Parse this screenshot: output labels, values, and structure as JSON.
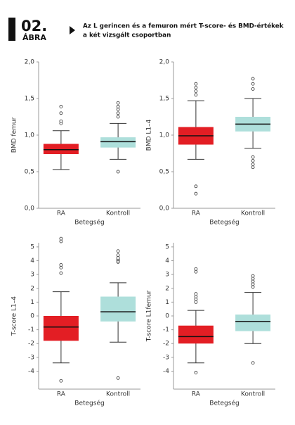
{
  "header": {
    "number": "02.",
    "label": "ÁBRA",
    "title": [
      "Az L gerincen és a femuron mért T-score- és BMD-értékek",
      "a két vizsgált csoportban"
    ]
  },
  "chart_data": [
    {
      "type": "box",
      "ylabel": "BMD femur",
      "xlabel": "Betegség",
      "categories": [
        "RA",
        "Kontroll"
      ],
      "colors": [
        "#e31e24",
        "#aedfdb"
      ],
      "ylim": [
        0,
        2
      ],
      "yticks": [
        {
          "value": 0,
          "label": "0,0"
        },
        {
          "value": 0.5,
          "label": "0,5"
        },
        {
          "value": 1,
          "label": "1,0"
        },
        {
          "value": 1.5,
          "label": "1,5"
        },
        {
          "value": 2,
          "label": "2,0"
        }
      ],
      "boxes": [
        {
          "whisker_low": 0.53,
          "q1": 0.74,
          "median": 0.8,
          "q3": 0.88,
          "whisker_high": 1.06,
          "outliers": [
            1.16,
            1.19,
            1.3,
            1.39
          ]
        },
        {
          "whisker_low": 0.67,
          "q1": 0.83,
          "median": 0.91,
          "q3": 0.97,
          "whisker_high": 1.16,
          "outliers": [
            0.5,
            1.25,
            1.3,
            1.35,
            1.39,
            1.44
          ]
        }
      ]
    },
    {
      "type": "box",
      "ylabel": "BMD L1–4",
      "xlabel": "Betegség",
      "categories": [
        "RA",
        "Kontroll"
      ],
      "colors": [
        "#e31e24",
        "#aedfdb"
      ],
      "ylim": [
        0,
        2
      ],
      "yticks": [
        {
          "value": 0,
          "label": "0,0"
        },
        {
          "value": 0.5,
          "label": "0,5"
        },
        {
          "value": 1,
          "label": "1,0"
        },
        {
          "value": 1.5,
          "label": "1,5"
        },
        {
          "value": 2,
          "label": "2,0"
        }
      ],
      "boxes": [
        {
          "whisker_low": 0.67,
          "q1": 0.87,
          "median": 0.99,
          "q3": 1.11,
          "whisker_high": 1.47,
          "outliers": [
            0.2,
            0.3,
            1.55,
            1.6,
            1.65,
            1.7
          ]
        },
        {
          "whisker_low": 0.82,
          "q1": 1.05,
          "median": 1.15,
          "q3": 1.25,
          "whisker_high": 1.5,
          "outliers": [
            0.56,
            0.6,
            0.65,
            0.7,
            1.63,
            1.7,
            1.77
          ]
        }
      ]
    },
    {
      "type": "box",
      "ylabel": "T-score L1–4",
      "xlabel": "Betegség",
      "categories": [
        "RA",
        "Kontroll"
      ],
      "colors": [
        "#e31e24",
        "#aedfdb"
      ],
      "ylim": [
        -5.3,
        5.3
      ],
      "yticks": [
        -4,
        -3,
        -2,
        -1,
        0,
        1,
        2,
        3,
        4,
        5
      ],
      "boxes": [
        {
          "whisker_low": -3.4,
          "q1": -1.8,
          "median": -0.8,
          "q3": 0,
          "whisker_high": 1.75,
          "outliers": [
            -4.7,
            3.1,
            3.5,
            3.7,
            5.4,
            5.6
          ]
        },
        {
          "whisker_low": -1.9,
          "q1": -0.4,
          "median": 0.3,
          "q3": 1.4,
          "whisker_high": 2.4,
          "outliers": [
            -4.5,
            3.9,
            4.0,
            4.1,
            4.2,
            4.4,
            4.7
          ]
        }
      ]
    },
    {
      "type": "box",
      "ylabel": "T-score L1femur",
      "xlabel": "Betegség",
      "categories": [
        "RA",
        "Kontroll"
      ],
      "colors": [
        "#e31e24",
        "#aedfdb"
      ],
      "ylim": [
        -5.3,
        5.3
      ],
      "yticks": [
        -4,
        -3,
        -2,
        -1,
        0,
        1,
        2,
        3,
        4,
        5
      ],
      "boxes": [
        {
          "whisker_low": -3.4,
          "q1": -2.0,
          "median": -1.5,
          "q3": -0.7,
          "whisker_high": 0.4,
          "outliers": [
            -4.1,
            1.0,
            1.2,
            1.4,
            1.6,
            3.2,
            3.4
          ]
        },
        {
          "whisker_low": -2.0,
          "q1": -1.1,
          "median": -0.4,
          "q3": 0.1,
          "whisker_high": 1.7,
          "outliers": [
            -3.4,
            2.1,
            2.3,
            2.5,
            2.7,
            2.9
          ]
        }
      ]
    }
  ]
}
